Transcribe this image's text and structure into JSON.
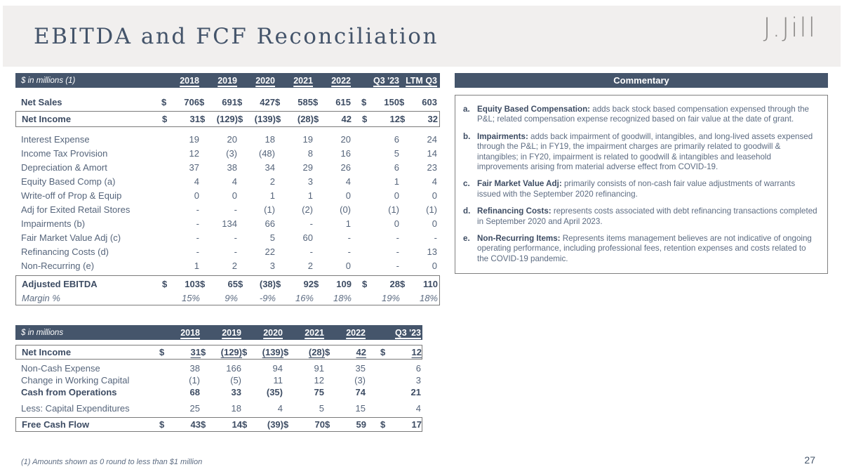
{
  "header": {
    "title": "EBITDA and FCF Reconciliation",
    "logo": "J.Jill"
  },
  "tables": {
    "ebitda": {
      "unit_label": "$ in millions (1)",
      "columns": [
        "2018",
        "2019",
        "2020",
        "2021",
        "2022",
        "Q3 '23",
        "LTM Q3"
      ],
      "rows": [
        {
          "label": "Net Sales",
          "dollar": true,
          "style": "bold",
          "gap_before": 10,
          "values": [
            "706",
            "691",
            "427",
            "585",
            "615",
            "150",
            "603"
          ]
        },
        {
          "label": "Net Income",
          "dollar": true,
          "style": "bold boxed",
          "gap_before": 3,
          "values": [
            "31",
            "(129)",
            "(139)",
            "(28)",
            "42",
            "12",
            "32"
          ]
        },
        {
          "label": "Interest Expense",
          "gap_before": 7,
          "values": [
            "19",
            "20",
            "18",
            "19",
            "20",
            "6",
            "24"
          ]
        },
        {
          "label": "Income Tax Provision",
          "values": [
            "12",
            "(3)",
            "(48)",
            "8",
            "16",
            "5",
            "14"
          ]
        },
        {
          "label": "Depreciation & Amort",
          "values": [
            "37",
            "38",
            "34",
            "29",
            "26",
            "6",
            "23"
          ]
        },
        {
          "label": "Equity Based Comp (a)",
          "values": [
            "4",
            "4",
            "2",
            "3",
            "4",
            "1",
            "4"
          ]
        },
        {
          "label": "Write-off of Prop & Equip",
          "values": [
            "0",
            "0",
            "1",
            "1",
            "0",
            "0",
            "0"
          ]
        },
        {
          "label": "Adj for Exited Retail Stores",
          "values": [
            "-",
            "-",
            "(1)",
            "(2)",
            "(0)",
            "(1)",
            "(1)"
          ]
        },
        {
          "label": "Impairments (b)",
          "values": [
            "-",
            "134",
            "66",
            "-",
            "1",
            "0",
            "0"
          ]
        },
        {
          "label": "Fair Market Value Adj (c)",
          "values": [
            "-",
            "-",
            "5",
            "60",
            "-",
            "-",
            "-"
          ]
        },
        {
          "label": "Refinancing Costs (d)",
          "values": [
            "-",
            "-",
            "22",
            "-",
            "-",
            "-",
            "13"
          ]
        },
        {
          "label": "Non-Recurring (e)",
          "values": [
            "1",
            "2",
            "3",
            "2",
            "0",
            "-",
            "0"
          ]
        },
        {
          "label": "Adjusted EBITDA",
          "dollar": true,
          "style": "bold box-top",
          "gap_before": 4,
          "values": [
            "103",
            "65",
            "(38)",
            "92",
            "109",
            "28",
            "110"
          ]
        },
        {
          "label": "Margin %",
          "style": "italic box-bottom",
          "values": [
            "15%",
            "9%",
            "-9%",
            "16%",
            "18%",
            "19%",
            "18%"
          ]
        }
      ]
    },
    "fcf": {
      "unit_label": "$ in millions",
      "columns": [
        "2018",
        "2019",
        "2020",
        "2021",
        "2022",
        "Q3 '23"
      ],
      "rows": [
        {
          "label": "Net Income",
          "dollar": true,
          "style": "bold boxed uvals",
          "gap_before": 7,
          "values": [
            "31",
            "(129)",
            "(139)",
            "(28)",
            "42",
            "12"
          ]
        },
        {
          "label": "Non-Cash Expense",
          "gap_before": 4,
          "values": [
            "38",
            "166",
            "94",
            "91",
            "35",
            "6"
          ]
        },
        {
          "label": "Change in Working Capital",
          "values": [
            "(1)",
            "(5)",
            "11",
            "12",
            "(3)",
            "3"
          ]
        },
        {
          "label": "Cash from Operations",
          "style": "bold",
          "values": [
            "68",
            "33",
            "(35)",
            "75",
            "74",
            "21"
          ]
        },
        {
          "label": "Less: Capital Expenditures",
          "gap_before": 6,
          "values": [
            "25",
            "18",
            "4",
            "5",
            "15",
            "4"
          ]
        },
        {
          "label": "Free Cash Flow",
          "dollar": true,
          "style": "bold boxed",
          "gap_before": 4,
          "values": [
            "43",
            "14",
            "(39)",
            "70",
            "59",
            "17"
          ]
        }
      ]
    }
  },
  "commentary": {
    "title": "Commentary",
    "items": [
      {
        "letter": "a.",
        "lead": "Equity Based Compensation:",
        "text": "adds back stock based compensation expensed through the P&L; related compensation expense recognized based on fair value at the date of grant."
      },
      {
        "letter": "b.",
        "lead": "Impairments:",
        "text": "adds back impairment of goodwill, intangibles, and long-lived assets expensed through the P&L; in FY19, the impairment charges are primarily related to goodwill & intangibles; in FY20, impairment is related to goodwill & intangibles and leasehold improvements arising from material adverse effect from COVID-19."
      },
      {
        "letter": "c.",
        "lead": "Fair Market Value Adj:",
        "text": "primarily consists of non-cash fair value adjustments of warrants issued with the September 2020 refinancing."
      },
      {
        "letter": "d.",
        "lead": "Refinancing Costs:",
        "text": "represents costs associated with debt refinancing transactions completed in September 2020 and April 2023."
      },
      {
        "letter": "e.",
        "lead": "Non-Recurring Items:",
        "text": "Represents items management believes are not indicative of ongoing operating performance, including professional fees, retention expenses and costs related to the COVID-19 pandemic."
      }
    ]
  },
  "footnote": "(1) Amounts shown as 0 round to less than $1 million",
  "page_number": "27",
  "colors": {
    "slate_header": "#45556B",
    "text_regular": "#56657B",
    "text_bold": "#3D4C63",
    "banner_bg": "#F1EFEE",
    "logo_gray": "#8E8C8A",
    "box_border": "#7A7A7A"
  }
}
